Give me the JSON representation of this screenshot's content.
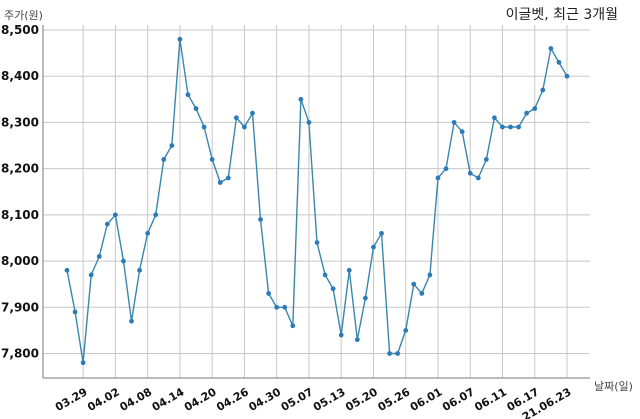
{
  "chart_data": {
    "type": "line",
    "title": "이글벳, 최근 3개월",
    "ylabel": "주가(원)",
    "xlabel": "날짜(일)",
    "ylim": [
      7750,
      8510
    ],
    "yticks": [
      7800,
      7900,
      8000,
      8100,
      8200,
      8300,
      8400,
      8500
    ],
    "ytick_labels": [
      "7,800",
      "7,900",
      "8,000",
      "8,100",
      "8,200",
      "8,300",
      "8,400",
      "8,500"
    ],
    "xtick_labels": [
      "03.29",
      "04.02",
      "04.08",
      "04.14",
      "04.20",
      "04.26",
      "04.30",
      "05.07",
      "05.13",
      "05.20",
      "05.26",
      "06.01",
      "06.07",
      "06.11",
      "06.17",
      "21.06.23"
    ],
    "xtick_positions": [
      2,
      6,
      10,
      14,
      18,
      22,
      26,
      30,
      34,
      38,
      42,
      46,
      50,
      54,
      58,
      62
    ],
    "grid": true,
    "series": [
      {
        "values": [
          7980,
          7890,
          7780,
          7970,
          8010,
          8080,
          8100,
          8000,
          7870,
          7980,
          8060,
          8100,
          8220,
          8250,
          8480,
          8360,
          8330,
          8290,
          8220,
          8170,
          8180,
          8310,
          8290,
          8320,
          8090,
          7930,
          7900,
          7900,
          7860,
          8350,
          8300,
          8040,
          7970,
          7940,
          7840,
          7980,
          7830,
          7920,
          8030,
          8060,
          7800,
          7800,
          7850,
          7950,
          7930,
          7970,
          8180,
          8200,
          8300,
          8280,
          8190,
          8180,
          8220,
          8310,
          8290,
          8290,
          8290,
          8320,
          8330,
          8370,
          8460,
          8430,
          8400
        ]
      }
    ],
    "colors": {
      "line": "#3a87ad",
      "marker": "#2b7bb9",
      "grid": "#c8c8c8"
    }
  }
}
